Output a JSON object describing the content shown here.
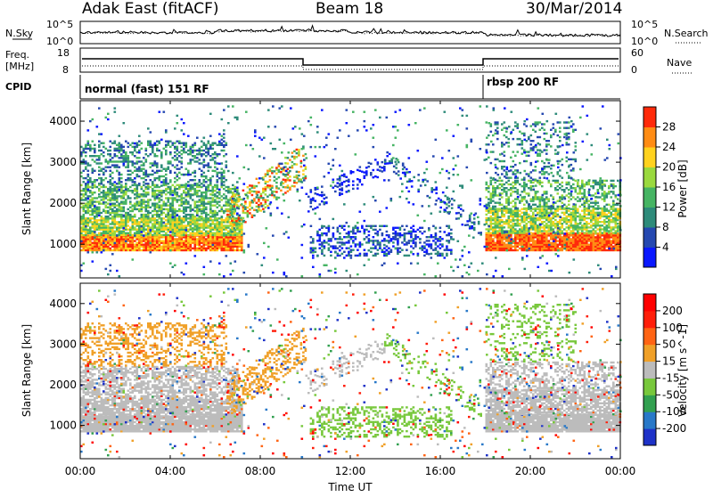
{
  "header": {
    "station": "Adak East (fitACF)",
    "beam": "Beam 18",
    "date": "30/Mar/2014"
  },
  "top_panel": {
    "left_label": "N.Sky",
    "right_label": "N.Search",
    "ticks_left": [
      "10^5",
      "10^0"
    ],
    "ticks_right": [
      "10^5",
      "10^0"
    ]
  },
  "freq_panel": {
    "left_label_1": "Freq.",
    "left_label_2": "[MHz]",
    "right_label": "Nave",
    "ticks_left": [
      "18",
      "8"
    ],
    "ticks_right": [
      "60",
      "0"
    ]
  },
  "cpid_panel": {
    "label": "CPID",
    "modes": [
      "normal (fast) 151 RF",
      "rbsp 200 RF"
    ]
  },
  "chart_data": [
    {
      "type": "heatmap",
      "title": "",
      "xlabel": "",
      "ylabel": "Slant Range [km]",
      "x_ticks": [
        "00:00",
        "04:00",
        "08:00",
        "12:00",
        "16:00",
        "20:00",
        "00:00"
      ],
      "y_ticks": [
        "1000",
        "2000",
        "3000",
        "4000"
      ],
      "ylim": [
        180,
        4500
      ],
      "colorbar": {
        "label": "Power [dB]",
        "ticks": [
          "4",
          "8",
          "12",
          "16",
          "20",
          "24",
          "28"
        ],
        "range": [
          0,
          32
        ],
        "colors": [
          "#0a18ff",
          "#2548b0",
          "#2e8b7a",
          "#46b463",
          "#9ad93e",
          "#ffd21e",
          "#ff8c14",
          "#ff2a0a"
        ]
      }
    },
    {
      "type": "heatmap",
      "title": "",
      "xlabel": "Time UT",
      "ylabel": "Slant Range [km]",
      "x_ticks": [
        "00:00",
        "04:00",
        "08:00",
        "12:00",
        "16:00",
        "20:00",
        "00:00"
      ],
      "y_ticks": [
        "1000",
        "2000",
        "3000",
        "4000"
      ],
      "ylim": [
        180,
        4500
      ],
      "colorbar": {
        "label": "Velocity [m s^-1]",
        "ticks": [
          "200",
          "100",
          "50",
          "15",
          "-15",
          "-50",
          "-100",
          "-200"
        ],
        "colors": [
          "#1e32c8",
          "#2878c8",
          "#32a050",
          "#78c83c",
          "#bcbcbc",
          "#f0a028",
          "#ff6414",
          "#ff1e0a",
          "#ff0000"
        ]
      }
    }
  ]
}
